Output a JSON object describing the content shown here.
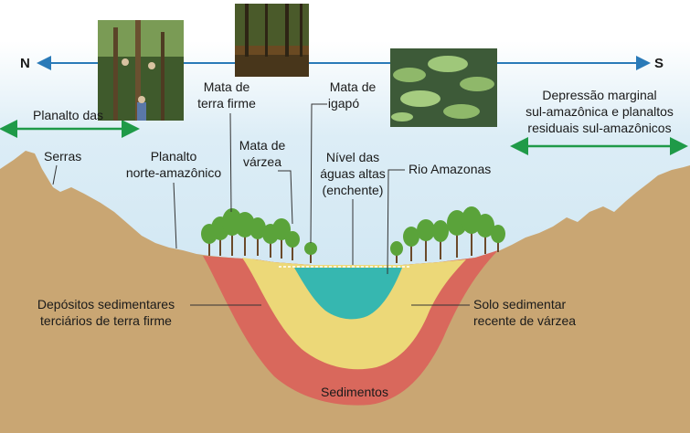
{
  "directions": {
    "north": "N",
    "south": "S"
  },
  "labels": {
    "planalto_guianas": "Planalto das",
    "depressao_lines": [
      "Depressão marginal",
      "sul-amazônica e planaltos",
      "residuais sul-amazônicos"
    ],
    "serras": "Serras",
    "planalto_norte_lines": [
      "Planalto",
      "norte-amazônico"
    ],
    "mata_terra_firme_lines": [
      "Mata de",
      "terra firme"
    ],
    "mata_varzea_lines": [
      "Mata de",
      "várzea"
    ],
    "mata_igapo_lines": [
      "Mata de",
      "igapó"
    ],
    "nivel_aguas_lines": [
      "Nível das",
      "águas altas",
      "(enchente)"
    ],
    "rio_amazonas": "Rio Amazonas",
    "depositos_lines": [
      "Depósitos sedimentares",
      "terciários de terra firme"
    ],
    "solo_lines": [
      "Solo sedimentar",
      "recente de várzea"
    ],
    "sedimentos": "Sedimentos"
  },
  "photos": [
    {
      "name": "terra-firme-forest-photo",
      "subject": "people among tall trees in upland forest"
    },
    {
      "name": "igapo-flooded-forest-photo",
      "subject": "flooded forest with trees standing in dark water"
    },
    {
      "name": "victoria-lily-pads-photo",
      "subject": "giant water lily pads on river surface"
    }
  ],
  "colors": {
    "sky": "#d9ecf5",
    "terrain": "#c9a673",
    "red_layer": "#d9685c",
    "yellow_layer": "#ecd878",
    "water": "#36b7b0",
    "blue_arrow": "#2a7ab8",
    "green_arrow": "#1f9a48",
    "trees": "#5aa33a"
  }
}
